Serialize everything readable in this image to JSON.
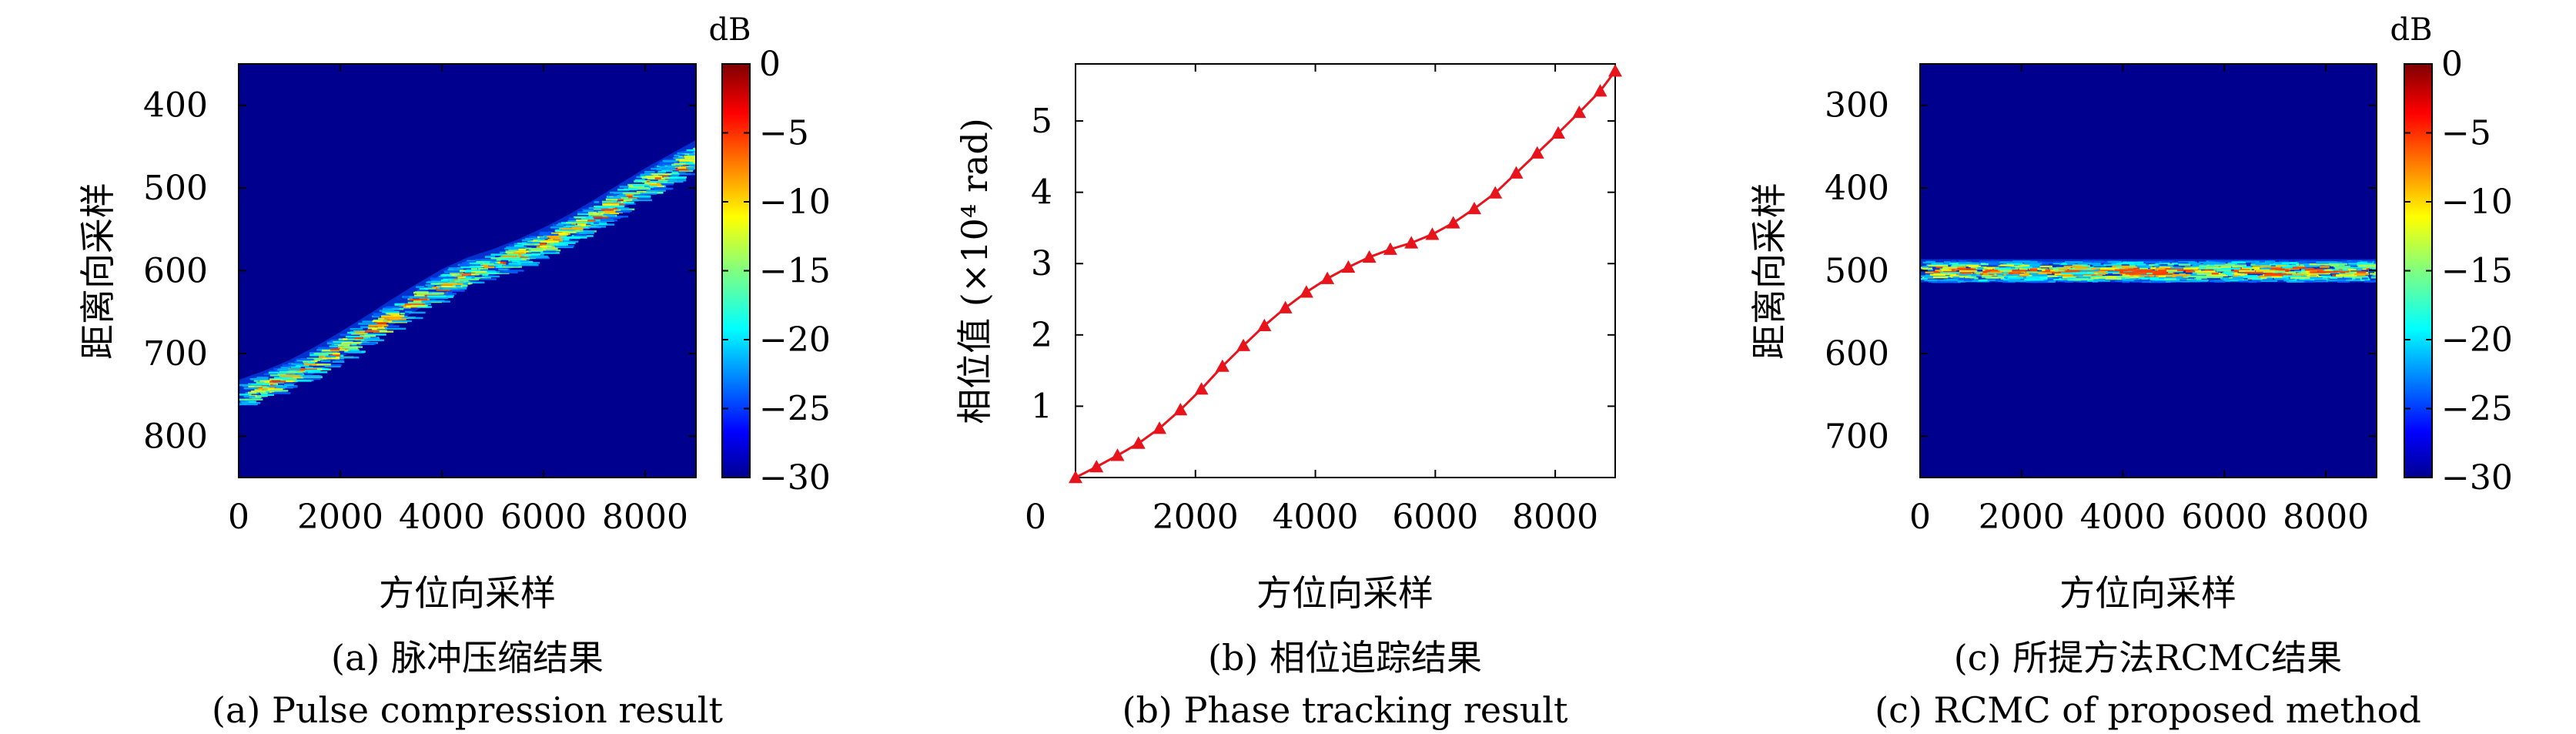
{
  "chart_data": [
    {
      "type": "heatmap",
      "panel": "a",
      "xlabel": "方位向采样",
      "ylabel": "距离向采样",
      "xlim": [
        0,
        9000
      ],
      "ylim": [
        850,
        350
      ],
      "xticks": [
        0,
        2000,
        4000,
        6000,
        8000
      ],
      "yticks": [
        400,
        500,
        600,
        700,
        800
      ],
      "colorbar": {
        "label": "dB",
        "range": [
          -30,
          0
        ],
        "ticks": [
          0,
          -5,
          -10,
          -15,
          -20,
          -25,
          -30
        ],
        "colormap": "jet"
      },
      "background_color": "#00008f",
      "trajectory": {
        "x": [
          0,
          500,
          1000,
          1500,
          2000,
          2500,
          3000,
          3500,
          4000,
          4500,
          5000,
          5500,
          6000,
          6500,
          7000,
          7500,
          8000,
          8500,
          9000
        ],
        "y": [
          748,
          737,
          724,
          708,
          690,
          671,
          651,
          632,
          614,
          600,
          590,
          578,
          564,
          548,
          530,
          511,
          492,
          475,
          458
        ]
      },
      "caption_cn": "(a) 脉冲压缩结果",
      "caption_en": "(a) Pulse compression result"
    },
    {
      "type": "line",
      "panel": "b",
      "ylabel": "相位值 (×10⁴ rad)",
      "xlabel": "",
      "xlim": [
        0,
        9000
      ],
      "ylim": [
        0,
        5.8
      ],
      "xticks": [
        0,
        2000,
        4000,
        6000,
        8000
      ],
      "yticks": [
        1,
        2,
        3,
        4,
        5
      ],
      "line_color": "#e8141c",
      "marker": "triangle",
      "x": [
        0,
        350,
        700,
        1050,
        1400,
        1750,
        2100,
        2450,
        2800,
        3150,
        3500,
        3850,
        4200,
        4550,
        4900,
        5250,
        5600,
        5950,
        6300,
        6650,
        7000,
        7350,
        7700,
        8050,
        8400,
        8750,
        9000
      ],
      "y": [
        0,
        0.15,
        0.31,
        0.48,
        0.69,
        0.95,
        1.24,
        1.56,
        1.85,
        2.13,
        2.38,
        2.6,
        2.79,
        2.95,
        3.09,
        3.2,
        3.29,
        3.41,
        3.57,
        3.77,
        3.99,
        4.27,
        4.55,
        4.83,
        5.12,
        5.42,
        5.7
      ],
      "caption_cn": "(b) 相位追踪结果",
      "caption_en": "(b) Phase tracking result"
    },
    {
      "type": "heatmap",
      "panel": "c",
      "xlabel": "方位向采样",
      "ylabel": "距离向采样",
      "xlim": [
        0,
        9000
      ],
      "ylim": [
        750,
        250
      ],
      "xticks": [
        0,
        2000,
        4000,
        6000,
        8000
      ],
      "yticks": [
        300,
        400,
        500,
        600,
        700
      ],
      "colorbar": {
        "label": "dB",
        "range": [
          -30,
          0
        ],
        "ticks": [
          0,
          -5,
          -10,
          -15,
          -20,
          -25,
          -30
        ],
        "colormap": "jet"
      },
      "background_color": "#00008f",
      "trajectory": {
        "x": [
          0,
          9000
        ],
        "y": [
          500,
          500
        ]
      },
      "caption_cn": "(c) 所提方法RCMC结果",
      "caption_en": "(c) RCMC of proposed method"
    }
  ],
  "panel_b_xlabel": "方位向采样",
  "colors": {
    "jet_stops": [
      "#00008f",
      "#0000ff",
      "#0080ff",
      "#00ffff",
      "#80ff80",
      "#ffff00",
      "#ff8000",
      "#ff0000",
      "#800000"
    ]
  }
}
